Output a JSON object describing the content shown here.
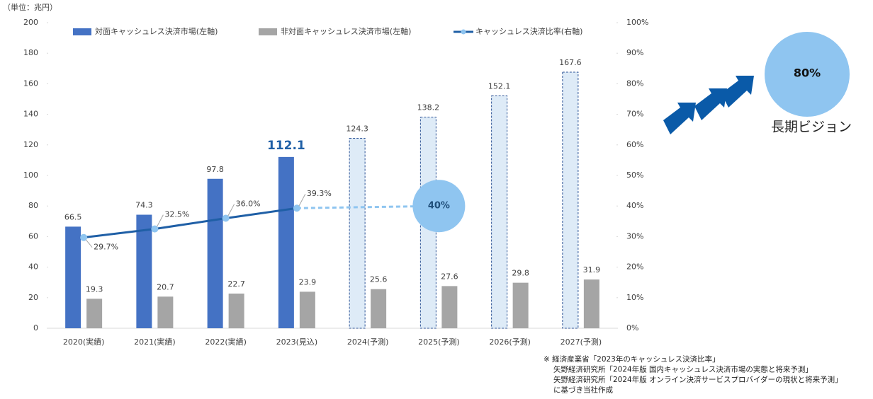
{
  "chart_data": {
    "type": "bar",
    "unit_label": "（単位：兆円）",
    "categories": [
      "2020(実績)",
      "2021(実績)",
      "2022(実績)",
      "2023(見込)",
      "2024(予測)",
      "2025(予測)",
      "2026(予測)",
      "2027(予測)"
    ],
    "series": [
      {
        "name": "対面キャッシュレス決済市場(左軸)",
        "color": "#4472c4",
        "forecast_color": "#deebf7",
        "forecast_stroke": "#2f5597",
        "dashed": [
          false,
          false,
          false,
          false,
          true,
          true,
          true,
          true
        ],
        "highlight_index": 3,
        "values": [
          66.5,
          74.3,
          97.8,
          112.1,
          124.3,
          138.2,
          152.1,
          167.6
        ]
      },
      {
        "name": "非対面キャッシュレス決済市場(左軸)",
        "color": "#a5a5a5",
        "values": [
          19.3,
          20.7,
          22.7,
          23.9,
          25.6,
          27.6,
          29.8,
          31.9
        ]
      },
      {
        "name": "キャッシュレス決済比率(右軸)",
        "color": "#1f5fa6",
        "marker_color": "#8fc5f0",
        "axis": "y2",
        "values": [
          29.7,
          32.5,
          36.0,
          39.3,
          null,
          40,
          null,
          null
        ],
        "value_labels": [
          "29.7%",
          "32.5%",
          "36.0%",
          "39.3%",
          null,
          "40%",
          null,
          null
        ]
      }
    ],
    "ylim": [
      0,
      200
    ],
    "yticks": [
      0,
      20,
      40,
      60,
      80,
      100,
      120,
      140,
      160,
      180,
      200
    ],
    "y2lim": [
      0,
      100
    ],
    "y2ticks": [
      {
        "value": 0,
        "label": "0%"
      },
      {
        "value": 10,
        "label": "10%"
      },
      {
        "value": 20,
        "label": "20%"
      },
      {
        "value": 30,
        "label": "30%"
      },
      {
        "value": 40,
        "label": "40%"
      },
      {
        "value": 50,
        "label": "50%"
      },
      {
        "value": 60,
        "label": "60%"
      },
      {
        "value": 70,
        "label": "70%"
      },
      {
        "value": 80,
        "label": "80%"
      },
      {
        "value": 90,
        "label": "90%"
      },
      {
        "value": 100,
        "label": "100%"
      }
    ],
    "vision": {
      "value": 80,
      "value_label": "80%",
      "label": "長期ビジョン"
    },
    "footnotes": [
      "※ 経済産業省「2023年のキャッシュレス決済比率」",
      "矢野経済研究所「2024年版 国内キャッシュレス決済市場の実態と将来予測」",
      "矢野経済研究所「2024年版 オンライン決済サービスプロバイダーの現状と将来予測」",
      "に基づき当社作成"
    ]
  }
}
